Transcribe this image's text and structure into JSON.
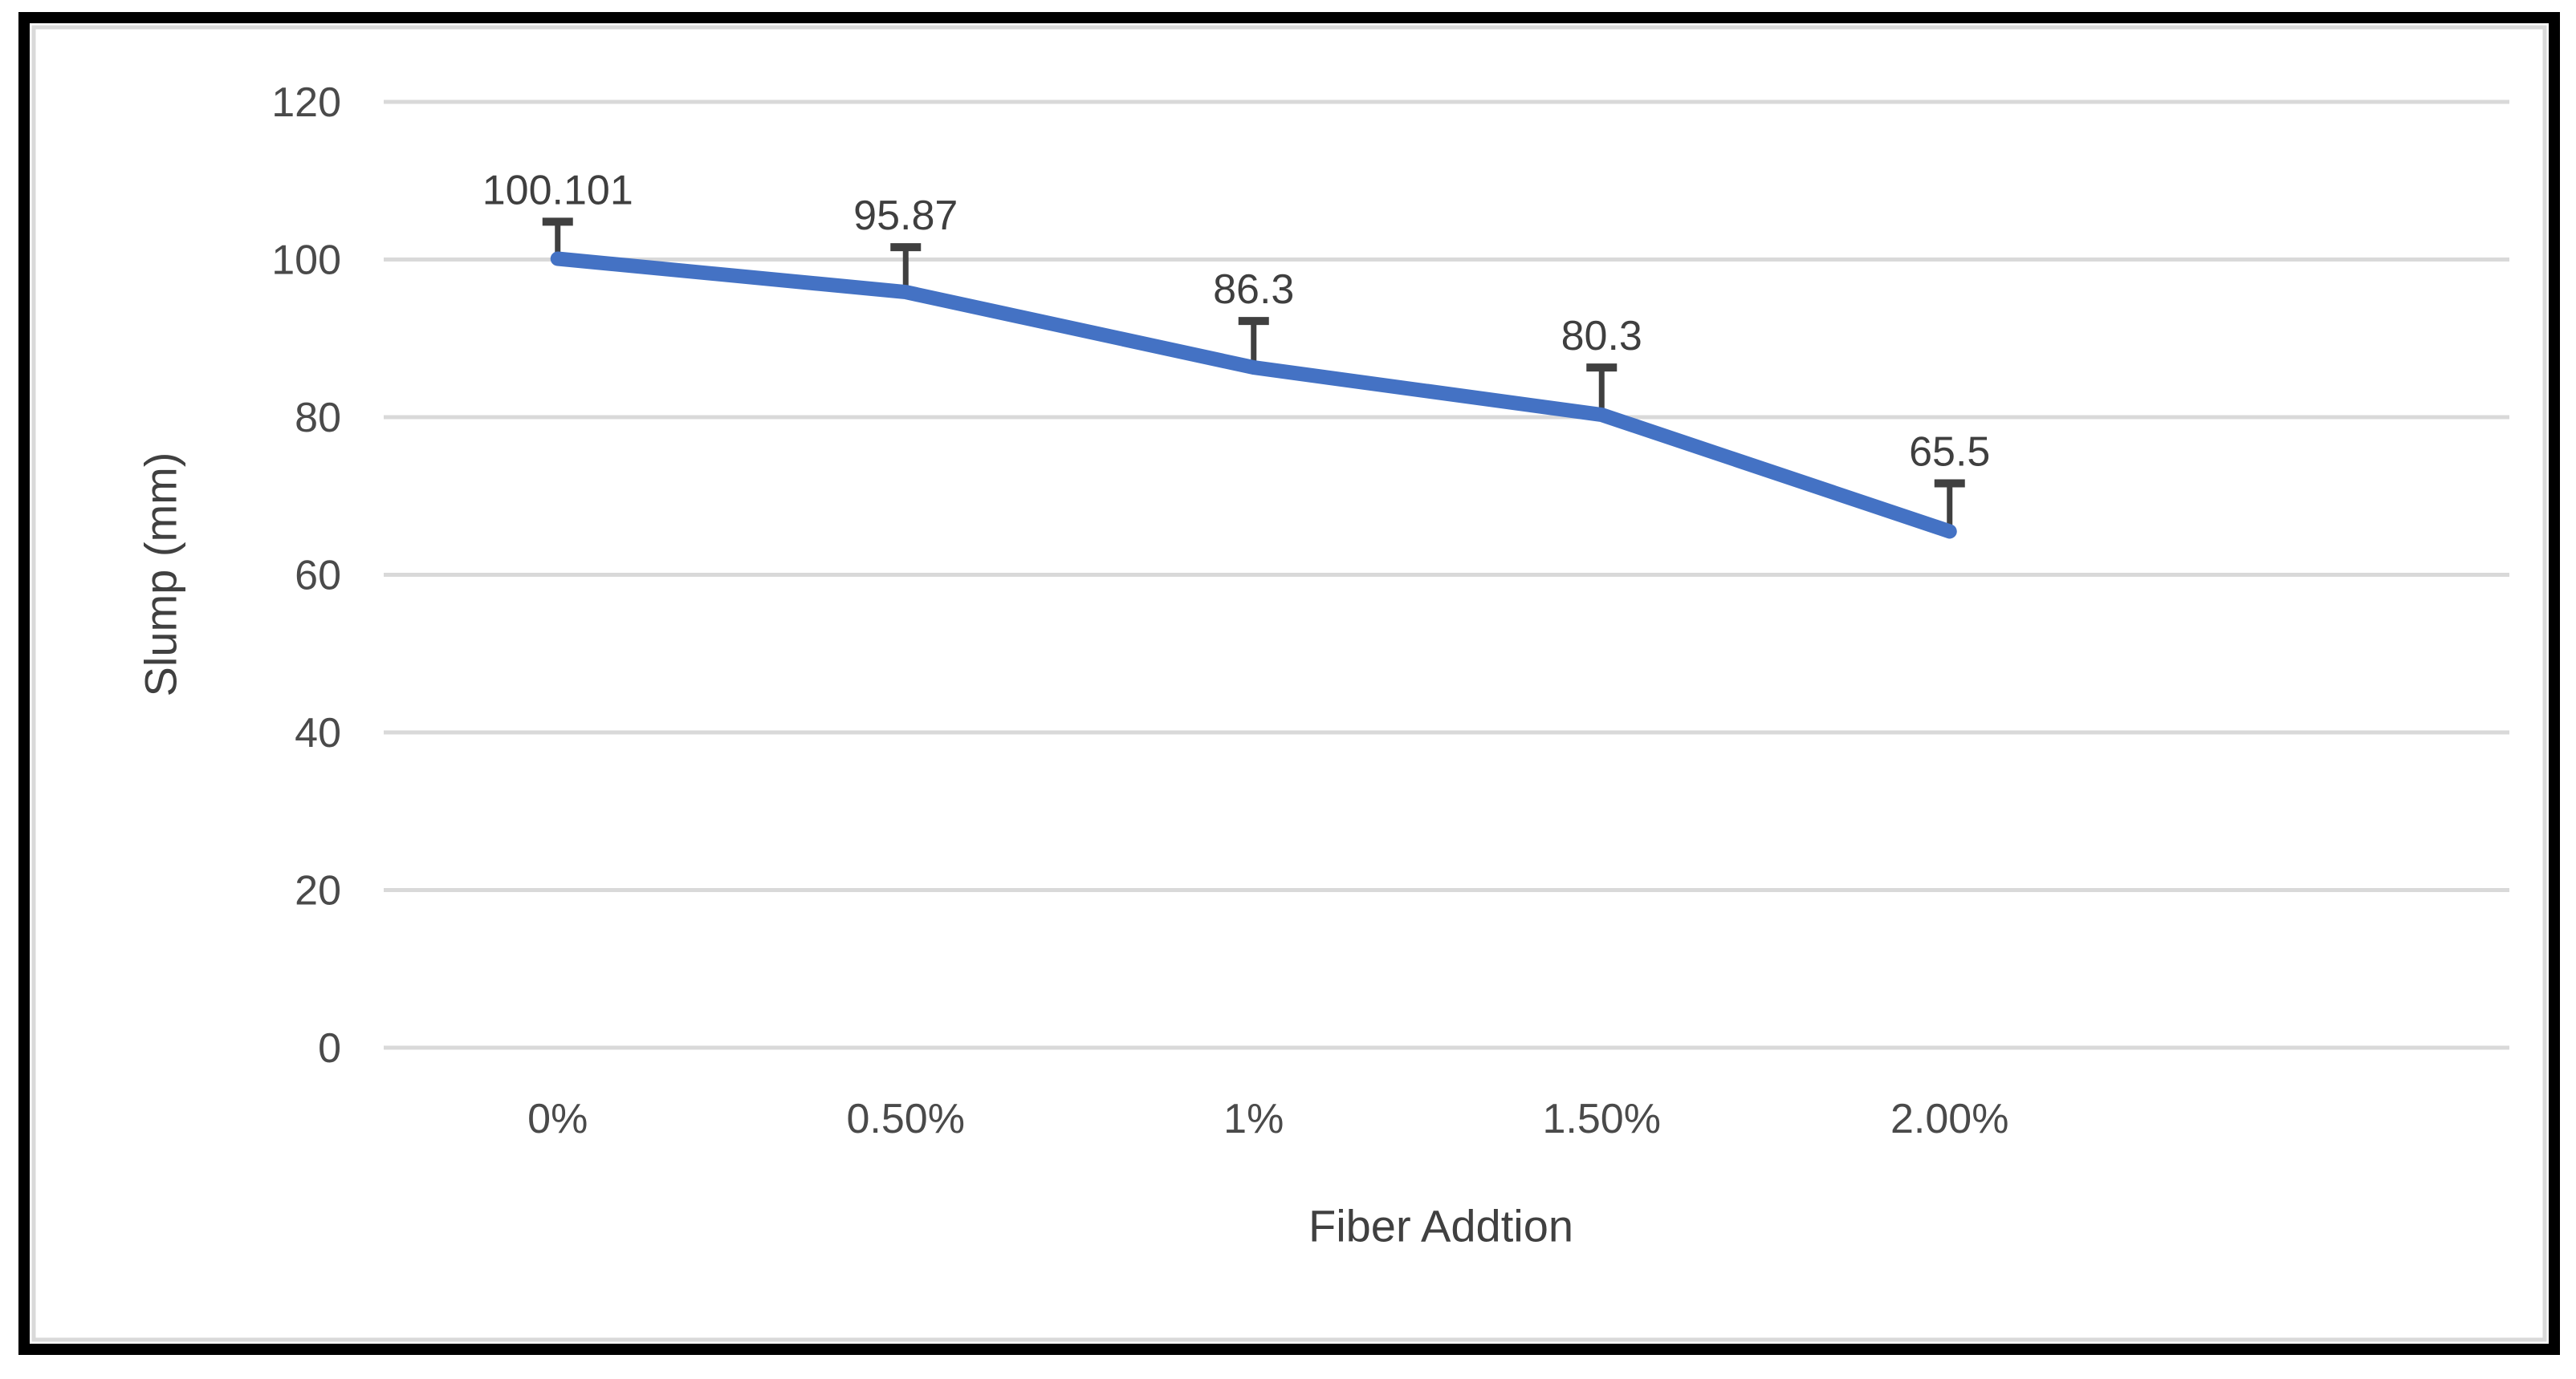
{
  "chart_data": {
    "type": "line",
    "categories": [
      "0%",
      "0.50%",
      "1%",
      "1.50%",
      "2.00%"
    ],
    "series": [
      {
        "name": "Slump",
        "values": [
          100.101,
          95.87,
          86.3,
          80.3,
          65.5
        ]
      }
    ],
    "data_labels": [
      "100.101",
      "95.87",
      "86.3",
      "80.3",
      "65.5"
    ],
    "error_bars_plus": [
      4.7,
      5.7,
      5.9,
      6.0,
      6.1
    ],
    "title": "",
    "xlabel": "Fiber Addtion",
    "ylabel": "Slump (mm)",
    "ylim": [
      0,
      120
    ],
    "ytick_step": 20,
    "ytick_labels": [
      "0",
      "20",
      "40",
      "60",
      "80",
      "100",
      "120"
    ],
    "grid": true,
    "legend": "none",
    "markers": "none",
    "colors": {
      "line": "#4472C4",
      "error_bar": "#404040",
      "gridline": "#D9D9D9",
      "axis_text": "#4A4A4A",
      "data_label": "#3F3F3F",
      "axis_title": "#404040",
      "figure_border": "#000000",
      "chart_area_border": "#D9D9D9",
      "background": "#FFFFFF"
    }
  }
}
